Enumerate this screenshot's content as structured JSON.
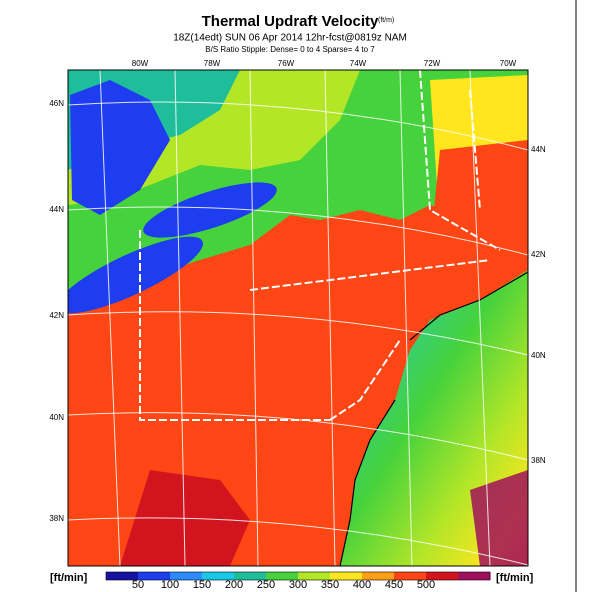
{
  "header": {
    "title": "Thermal Updraft Velocity",
    "title_unit": "(ft/m)",
    "subtitle": "18Z(14edt) SUN 06 Apr 2014 12hr-fcst@0819z NAM",
    "note": "B/S Ratio Stipple: Dense= 0 to 4 Sparse= 4 to 7"
  },
  "map": {
    "lon_labels": [
      "80W",
      "78W",
      "76W",
      "74W",
      "72W",
      "70W"
    ],
    "lat_labels_left": [
      "46N",
      "44N",
      "42N",
      "40N",
      "38N"
    ],
    "lat_labels_right": [
      "44N",
      "42N",
      "40N",
      "38N"
    ]
  },
  "colorbar": {
    "unit": "[ft/min]",
    "labels": [
      50,
      100,
      150,
      200,
      250,
      300,
      350,
      400,
      450,
      500
    ],
    "colors": [
      "#1414a0",
      "#1e3cf0",
      "#2c8cff",
      "#18c8e6",
      "#1ebe9a",
      "#46d23c",
      "#b4e628",
      "#ffe61e",
      "#ffa014",
      "#ff4614",
      "#d2141e",
      "#a0105a"
    ]
  }
}
